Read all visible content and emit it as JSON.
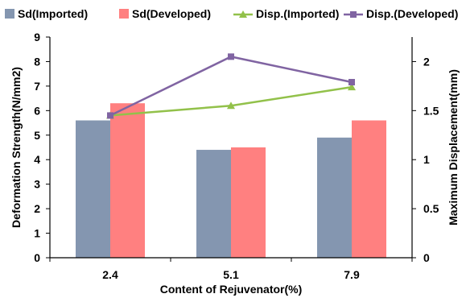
{
  "chart_data": {
    "type": "bar",
    "categories": [
      "2.4",
      "5.1",
      "7.9"
    ],
    "xlabel": "Content of Rejuvenator(%)",
    "ylabel": "Deformation Strength(N/mm2)",
    "y2label": "Maximum Displacement(mm)",
    "ylim": [
      0,
      9
    ],
    "y2lim": [
      0,
      2.25
    ],
    "yticks": [
      "0",
      "1",
      "2",
      "3",
      "4",
      "5",
      "6",
      "7",
      "8",
      "9"
    ],
    "y2ticks": [
      "0",
      "0.5",
      "1",
      "1.5",
      "2"
    ],
    "legend_position": "top",
    "grid": false,
    "bar_series": [
      {
        "name": "Sd(Imported)",
        "values": [
          5.6,
          4.4,
          4.9
        ],
        "color": "#8496B0"
      },
      {
        "name": "Sd(Developed)",
        "values": [
          6.3,
          4.5,
          5.6
        ],
        "color": "#FF8080"
      }
    ],
    "line_series": [
      {
        "name": "Disp.(Imported)",
        "values": [
          1.45,
          1.55,
          1.74
        ],
        "color": "#92C14A",
        "marker": "triangle",
        "axis": "right"
      },
      {
        "name": "Disp.(Developed)",
        "values": [
          1.45,
          2.05,
          1.79
        ],
        "color": "#8064A2",
        "marker": "square",
        "axis": "right"
      }
    ]
  }
}
